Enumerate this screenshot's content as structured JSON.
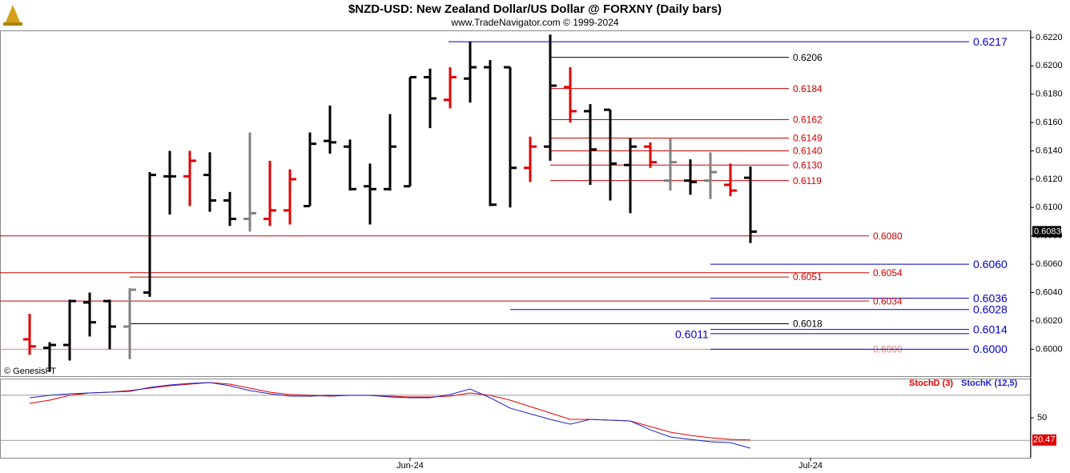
{
  "chart_data": {
    "type": "ohlc",
    "title": "$NZD-USD:  New Zealand Dollar/US Dollar @ FORXNY  (Daily bars)",
    "subtitle": "www.TradeNavigator.com © 1999-2024",
    "watermark": "© GenesisFT",
    "categories": [
      null,
      null,
      null,
      null,
      null,
      null,
      null,
      null,
      null,
      null,
      null,
      null,
      null,
      null,
      null,
      null,
      null,
      null,
      null,
      "Jun-24",
      null,
      null,
      null,
      null,
      null,
      null,
      null,
      null,
      null,
      null,
      null,
      null,
      null,
      null,
      null,
      null,
      null,
      null,
      null,
      "Jul-24",
      null
    ],
    "open": [
      0.6007,
      0.6001,
      0.6003,
      0.6033,
      0.6034,
      0.6016,
      0.604,
      0.6122,
      0.6122,
      0.6123,
      0.6105,
      0.6092,
      0.6092,
      0.6098,
      0.6101,
      0.6147,
      0.6143,
      0.6115,
      0.6113,
      0.6115,
      0.6192,
      0.6176,
      0.6191,
      0.6199,
      0.6199,
      0.6128,
      0.6143,
      0.6185,
      0.6168,
      0.6169,
      0.613,
      0.6143,
      0.6119,
      0.6119,
      0.6119,
      0.6116,
      0.6121,
      null,
      null,
      null,
      null
    ],
    "high": [
      0.6025,
      0.6005,
      0.6035,
      0.604,
      0.6035,
      0.6043,
      0.6125,
      0.614,
      0.614,
      0.6139,
      0.6111,
      0.6153,
      0.6133,
      0.6127,
      0.6153,
      0.6172,
      0.6148,
      0.6131,
      0.6166,
      0.6192,
      0.6198,
      0.6199,
      0.6217,
      0.6204,
      0.6199,
      0.615,
      0.6222,
      0.6199,
      0.6173,
      0.6169,
      0.6149,
      0.6146,
      0.6149,
      0.6134,
      0.6139,
      0.6131,
      0.6129,
      null,
      null,
      null,
      null
    ],
    "low": [
      0.5996,
      0.5984,
      0.5992,
      0.6009,
      0.6,
      0.5993,
      0.6037,
      0.6095,
      0.6101,
      0.6097,
      0.6087,
      0.6083,
      0.6087,
      0.6088,
      0.6101,
      0.6138,
      0.6112,
      0.6088,
      0.6112,
      0.6115,
      0.6156,
      0.617,
      0.6174,
      0.6101,
      0.61,
      0.6118,
      0.6133,
      0.616,
      0.6116,
      0.6105,
      0.6096,
      0.6128,
      0.6112,
      0.6109,
      0.6106,
      0.6108,
      0.6075,
      null,
      null,
      null,
      null
    ],
    "close": [
      0.6002,
      0.6003,
      0.6034,
      0.6019,
      0.6016,
      0.6042,
      0.6123,
      0.6122,
      0.6133,
      0.6105,
      0.6092,
      0.6096,
      0.6098,
      0.612,
      0.6145,
      0.6146,
      0.6113,
      0.6113,
      0.6143,
      0.6192,
      0.6177,
      0.6192,
      0.6199,
      0.6102,
      0.6128,
      0.6143,
      0.6186,
      0.6168,
      0.6141,
      0.6131,
      0.6143,
      0.6132,
      0.6132,
      0.6118,
      0.6125,
      0.6112,
      0.6083,
      null,
      null,
      null,
      null
    ],
    "colors": [
      "#e00000",
      "#000000",
      "#000000",
      "#000000",
      "#000000",
      "#808080",
      "#000000",
      "#000000",
      "#e00000",
      "#000000",
      "#000000",
      "#808080",
      "#e00000",
      "#e00000",
      "#000000",
      "#000000",
      "#000000",
      "#000000",
      "#000000",
      "#000000",
      "#000000",
      "#e00000",
      "#000000",
      "#000000",
      "#000000",
      "#e00000",
      "#000000",
      "#e00000",
      "#000000",
      "#000000",
      "#000000",
      "#e00000",
      "#808080",
      "#000000",
      "#808080",
      "#e00000",
      "#000000",
      null,
      null,
      null,
      null
    ],
    "last_price": 0.6083,
    "ylim": [
      0.5981,
      0.6225
    ],
    "yticks": [
      {
        "value": 0.6,
        "label": "0.6000"
      },
      {
        "value": 0.602,
        "label": "0.6020"
      },
      {
        "value": 0.604,
        "label": "0.6040"
      },
      {
        "value": 0.606,
        "label": "0.6060"
      },
      {
        "value": 0.608,
        "label": "0.6080"
      },
      {
        "value": 0.61,
        "label": "0.6100"
      },
      {
        "value": 0.612,
        "label": "0.6120"
      },
      {
        "value": 0.614,
        "label": "0.6140"
      },
      {
        "value": 0.616,
        "label": "0.6160"
      },
      {
        "value": 0.618,
        "label": "0.6180"
      },
      {
        "value": 0.62,
        "label": "0.6200"
      },
      {
        "value": 0.622,
        "label": "0.6220"
      }
    ],
    "levels": [
      {
        "value": 0.6217,
        "label": "0.6217",
        "color": "#0000cc"
      },
      {
        "value": 0.6206,
        "label": "0.6206",
        "color": "#000000"
      },
      {
        "value": 0.6184,
        "label": "0.6184",
        "color": "#cc0000"
      },
      {
        "value": 0.6162,
        "label": "0.6162",
        "color": "#cc0000"
      },
      {
        "value": 0.6149,
        "label": "0.6149",
        "color": "#cc0000"
      },
      {
        "value": 0.614,
        "label": "0.6140",
        "color": "#cc0000"
      },
      {
        "value": 0.613,
        "label": "0.6130",
        "color": "#cc0000"
      },
      {
        "value": 0.6119,
        "label": "0.6119",
        "color": "#cc0000"
      },
      {
        "value": 0.608,
        "label": "0.6080",
        "color": "#cc0000"
      },
      {
        "value": 0.606,
        "label": "0.6060",
        "color": "#0000cc"
      },
      {
        "value": 0.6054,
        "label": "0.6054",
        "color": "#cc0000"
      },
      {
        "value": 0.6051,
        "label": "0.6051",
        "color": "#cc0000"
      },
      {
        "value": 0.6036,
        "label": "0.6036",
        "color": "#0000cc"
      },
      {
        "value": 0.6034,
        "label": "0.6034",
        "color": "#cc0000"
      },
      {
        "value": 0.6028,
        "label": "0.6028",
        "color": "#0000cc"
      },
      {
        "value": 0.6018,
        "label": "0.6018",
        "color": "#000000"
      },
      {
        "value": 0.6014,
        "label": "0.6014",
        "color": "#0000cc"
      },
      {
        "value": 0.6011,
        "label": "0.6011",
        "color": "#0000cc"
      },
      {
        "value": 0.6,
        "label": "0.6000",
        "color": "#e08080"
      },
      {
        "value": 0.6,
        "label": "0.6000",
        "color": "#0000cc"
      }
    ],
    "indicator": {
      "ylim": [
        0,
        100
      ],
      "yticks": [
        50
      ],
      "grid_values": [
        20,
        80
      ],
      "last_value": 20.47,
      "series": [
        {
          "name": "StochD (3)",
          "color": "#e00000",
          "values": [
            69.1,
            73.4,
            79.8,
            83.0,
            84.0,
            86.2,
            89.4,
            92.6,
            94.7,
            96.8,
            94.7,
            89.4,
            84.0,
            80.9,
            79.8,
            78.7,
            79.8,
            79.8,
            78.7,
            77.7,
            77.7,
            78.7,
            83.0,
            79.8,
            73.4,
            64.9,
            56.4,
            47.9,
            47.9,
            46.8,
            45.7,
            38.3,
            30.9,
            26.6,
            23.4,
            21.3,
            20.47,
            null,
            null,
            null,
            null
          ]
        },
        {
          "name": "StochK (12,5)",
          "color": "#2020cc",
          "values": [
            76.6,
            79.8,
            81.9,
            83.0,
            84.0,
            85.1,
            90.4,
            93.6,
            95.7,
            96.8,
            92.6,
            86.2,
            81.9,
            78.7,
            78.7,
            79.8,
            79.8,
            79.8,
            77.7,
            76.6,
            76.6,
            80.9,
            88.3,
            76.6,
            62.8,
            55.3,
            47.9,
            41.5,
            47.9,
            46.8,
            45.7,
            34.0,
            24.5,
            21.3,
            18.1,
            17.0,
            9.6,
            null,
            null,
            null,
            null
          ]
        }
      ]
    }
  }
}
